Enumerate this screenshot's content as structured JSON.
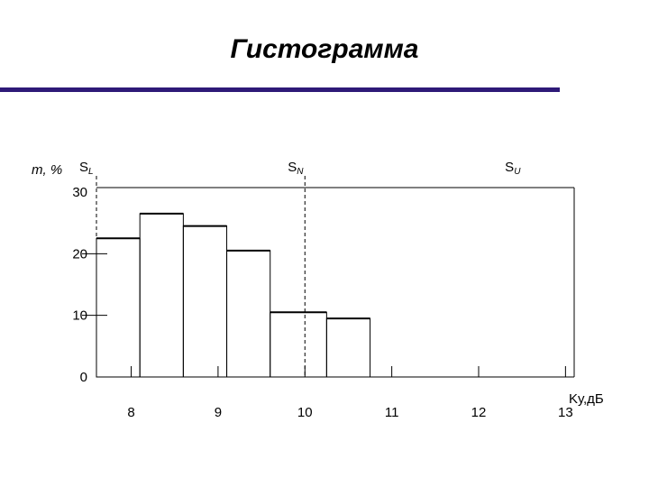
{
  "title": "Гистограмма",
  "colors": {
    "rule": "#2e1a78",
    "bars": "#000000",
    "background": "#ffffff"
  },
  "chart_data": {
    "type": "bar",
    "title": "Гистограмма",
    "ylabel": "m, %",
    "xlabel": "Kу,дБ",
    "ylim": [
      0,
      30
    ],
    "xlim": [
      7.6,
      13.1
    ],
    "y_ticks": [
      "0",
      "10",
      "20",
      "30"
    ],
    "x_ticks": [
      "8",
      "9",
      "10",
      "11",
      "12",
      "13"
    ],
    "bins": [
      {
        "x0": 7.6,
        "x1": 8.1,
        "value": 22.5
      },
      {
        "x0": 8.1,
        "x1": 8.6,
        "value": 26.5
      },
      {
        "x0": 8.6,
        "x1": 9.1,
        "value": 24.5
      },
      {
        "x0": 9.1,
        "x1": 9.6,
        "value": 20.5
      },
      {
        "x0": 9.6,
        "x1": 10.25,
        "value": 10.5
      },
      {
        "x0": 10.25,
        "x1": 10.75,
        "value": 9.5
      }
    ],
    "markers": [
      {
        "label": "S",
        "sub": "L",
        "x": 7.6,
        "dashed": true
      },
      {
        "label": "S",
        "sub": "N",
        "x": 10.0,
        "dashed": true
      },
      {
        "label": "S",
        "sub": "U",
        "x": 12.5,
        "dashed": false
      }
    ],
    "grid": false
  }
}
